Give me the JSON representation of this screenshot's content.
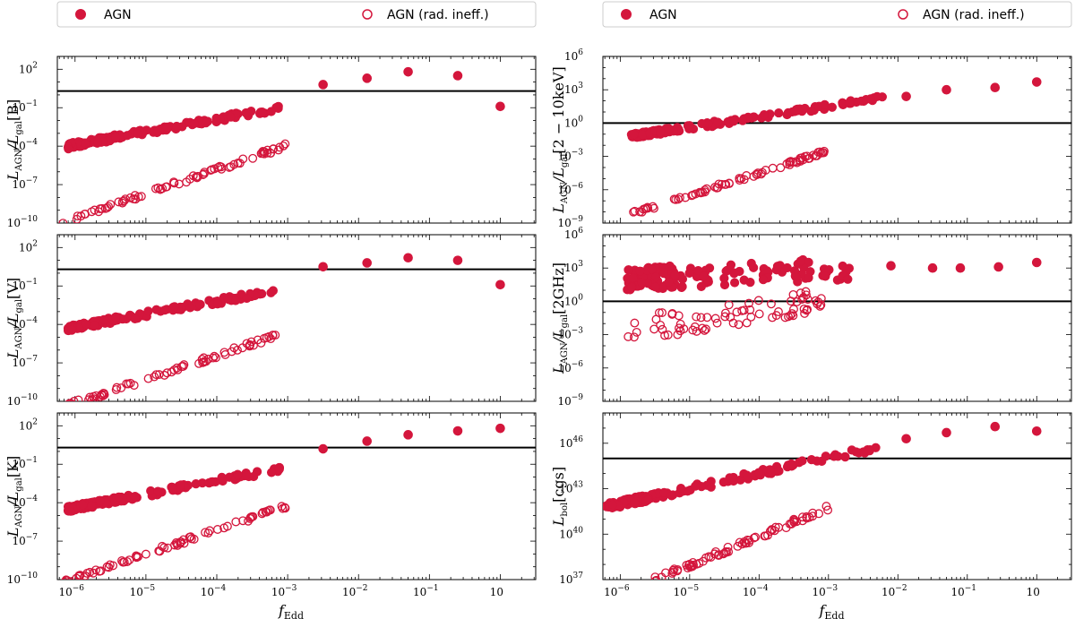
{
  "colors": {
    "accent": "#d4163c",
    "axis": "#000000",
    "legend_border": "#cccccc"
  },
  "legend": {
    "left": {
      "filled_label": "AGN",
      "open_label": "AGN (rad. ineff.)"
    },
    "right": {
      "filled_label": "AGN",
      "open_label": "AGN (rad. ineff.)"
    }
  },
  "x_axis": {
    "label_main": "f",
    "label_sub": "Edd",
    "tick_labels": [
      "10",
      "10",
      "10",
      "10",
      "10",
      "10",
      "10"
    ],
    "tick_exponents": [
      "−6",
      "−5",
      "−4",
      "−3",
      "−2",
      "−1",
      ""
    ],
    "tick_zero_label": "10"
  },
  "chart_data": [
    {
      "type": "scatter",
      "panel": "B",
      "ylabel_main": "L",
      "ylabel_sub1": "AGN",
      "ylabel_mid": "/L",
      "ylabel_sub2": "gal",
      "ylabel_tail": "[B]",
      "xscale": "log",
      "yscale": "log",
      "xlim_exp": [
        -6.25,
        0.5
      ],
      "ylim_exp": [
        -10,
        3
      ],
      "yticks_exp": [
        -10,
        -7,
        -4,
        -1,
        2
      ],
      "ytick_labels": [
        "10",
        "10",
        "10",
        "10",
        "10"
      ],
      "ytick_exps": [
        "−10",
        "−7",
        "−4",
        "−1",
        "2"
      ],
      "hline_exp": 0.3,
      "series": [
        {
          "name": "AGN",
          "marker": "filled",
          "x_range": [
            -6.1,
            -3.1
          ],
          "x_points": [
            -2.5,
            -1.88,
            -1.3,
            -0.6,
            0.0
          ],
          "y_points": [
            0.8,
            1.3,
            1.8,
            1.5,
            -0.9
          ],
          "trend": {
            "x0": -6.1,
            "y0": -4.0,
            "slope": 1.0
          }
        },
        {
          "name": "AGN (rad. ineff.)",
          "marker": "open",
          "x_range": [
            -6.2,
            -3.0
          ],
          "trend": {
            "x0": -6.2,
            "y0": -10.0,
            "slope": 1.9
          }
        }
      ]
    },
    {
      "type": "scatter",
      "panel": "V",
      "ylabel_main": "L",
      "ylabel_sub1": "AGN",
      "ylabel_mid": "/L",
      "ylabel_sub2": "gal",
      "ylabel_tail": "[V]",
      "xscale": "log",
      "yscale": "log",
      "xlim_exp": [
        -6.25,
        0.5
      ],
      "ylim_exp": [
        -10,
        3
      ],
      "yticks_exp": [
        -10,
        -7,
        -4,
        -1,
        2
      ],
      "ytick_labels": [
        "10",
        "10",
        "10",
        "10",
        "10"
      ],
      "ytick_exps": [
        "−10",
        "−7",
        "−4",
        "−1",
        "2"
      ],
      "hline_exp": 0.3,
      "series": [
        {
          "name": "AGN",
          "marker": "filled",
          "x_range": [
            -6.1,
            -3.1
          ],
          "x_points": [
            -2.5,
            -1.88,
            -1.3,
            -0.6,
            0.0
          ],
          "y_points": [
            0.5,
            0.8,
            1.2,
            1.0,
            -0.9
          ],
          "trend": {
            "x0": -6.1,
            "y0": -4.3,
            "slope": 1.0
          }
        },
        {
          "name": "AGN (rad. ineff.)",
          "marker": "open",
          "x_range": [
            -6.2,
            -3.0
          ],
          "trend": {
            "x0": -6.2,
            "y0": -10.5,
            "slope": 1.85
          }
        }
      ]
    },
    {
      "type": "scatter",
      "panel": "K",
      "ylabel_main": "L",
      "ylabel_sub1": "AGN",
      "ylabel_mid": "/L",
      "ylabel_sub2": "gal",
      "ylabel_tail": "[K]",
      "xscale": "log",
      "yscale": "log",
      "xlim_exp": [
        -6.25,
        0.5
      ],
      "ylim_exp": [
        -10,
        3
      ],
      "yticks_exp": [
        -10,
        -7,
        -4,
        -1,
        2
      ],
      "ytick_labels": [
        "10",
        "10",
        "10",
        "10",
        "10"
      ],
      "ytick_exps": [
        "−10",
        "−7",
        "−4",
        "−1",
        "2"
      ],
      "hline_exp": 0.3,
      "series": [
        {
          "name": "AGN",
          "marker": "filled",
          "x_range": [
            -6.1,
            -3.1
          ],
          "x_points": [
            -2.5,
            -1.88,
            -1.3,
            -0.6,
            0.0
          ],
          "y_points": [
            0.2,
            0.8,
            1.3,
            1.6,
            1.8
          ],
          "trend": {
            "x0": -6.1,
            "y0": -4.5,
            "slope": 1.05
          }
        },
        {
          "name": "AGN (rad. ineff.)",
          "marker": "open",
          "x_range": [
            -6.2,
            -3.0
          ],
          "trend": {
            "x0": -6.2,
            "y0": -10.3,
            "slope": 1.9
          }
        }
      ]
    },
    {
      "type": "scatter",
      "panel": "X",
      "ylabel_main": "L",
      "ylabel_sub1": "AGN",
      "ylabel_mid": "/L",
      "ylabel_sub2": "gal",
      "ylabel_tail": "[2 − 10keV]",
      "xscale": "log",
      "yscale": "log",
      "xlim_exp": [
        -6.25,
        0.5
      ],
      "ylim_exp": [
        -9,
        6
      ],
      "yticks_exp": [
        -9,
        -6,
        -3,
        0,
        3,
        6
      ],
      "ytick_labels": [
        "10",
        "10",
        "10",
        "10",
        "10",
        "10"
      ],
      "ytick_exps": [
        "−9",
        "−6",
        "−3",
        "0",
        "3",
        "6"
      ],
      "hline_exp": 0.0,
      "series": [
        {
          "name": "AGN",
          "marker": "filled",
          "x_range": [
            -5.85,
            -2.2
          ],
          "x_points": [
            -1.88,
            -1.3,
            -0.6,
            0.0
          ],
          "y_points": [
            2.4,
            3.0,
            3.2,
            3.7
          ],
          "trend": {
            "x0": -5.85,
            "y0": -1.2,
            "slope": 0.95
          }
        },
        {
          "name": "AGN (rad. ineff.)",
          "marker": "open",
          "x_range": [
            -5.9,
            -3.0
          ],
          "trend": {
            "x0": -5.9,
            "y0": -8.3,
            "slope": 2.0
          }
        }
      ]
    },
    {
      "type": "scatter",
      "panel": "Radio",
      "ylabel_main": "L",
      "ylabel_sub1": "AGN",
      "ylabel_mid": "/L",
      "ylabel_sub2": "gal",
      "ylabel_tail": "[2GHz]",
      "xscale": "log",
      "yscale": "log",
      "xlim_exp": [
        -6.25,
        0.5
      ],
      "ylim_exp": [
        -9,
        6
      ],
      "yticks_exp": [
        -9,
        -6,
        -3,
        0,
        3,
        6
      ],
      "ytick_labels": [
        "10",
        "10",
        "10",
        "10",
        "10",
        "10"
      ],
      "ytick_exps": [
        "−9",
        "−6",
        "−3",
        "0",
        "3",
        "6"
      ],
      "hline_exp": 0.0,
      "series": [
        {
          "name": "AGN",
          "marker": "filled",
          "x_range": [
            -5.9,
            -2.5
          ],
          "x_points": [
            -2.1,
            -1.5,
            -1.1,
            -0.55,
            0.0
          ],
          "y_points": [
            3.2,
            3.0,
            3.0,
            3.1,
            3.5
          ],
          "trend": {
            "x0": -5.9,
            "y0": 2.0,
            "slope": 0.3
          }
        },
        {
          "name": "AGN (rad. ineff.)",
          "marker": "open",
          "x_range": [
            -5.9,
            -3.0
          ],
          "trend": {
            "x0": -5.9,
            "y0": -2.5,
            "slope": 0.85
          }
        }
      ]
    },
    {
      "type": "scatter",
      "panel": "Bol",
      "ylabel_main": "L",
      "ylabel_sub1": "bol",
      "ylabel_mid": "",
      "ylabel_sub2": "",
      "ylabel_tail": "[cgs]",
      "xscale": "log",
      "yscale": "log",
      "xlim_exp": [
        -6.25,
        0.5
      ],
      "ylim_exp": [
        37,
        48
      ],
      "yticks_exp": [
        37,
        40,
        43,
        46
      ],
      "ytick_labels": [
        "10",
        "10",
        "10",
        "10"
      ],
      "ytick_exps": [
        "37",
        "40",
        "43",
        "46"
      ],
      "hline_exp": 45,
      "series": [
        {
          "name": "AGN",
          "marker": "filled",
          "x_range": [
            -6.2,
            -2.3
          ],
          "x_points": [
            -1.88,
            -1.3,
            -0.6,
            0.0
          ],
          "y_points": [
            46.3,
            46.7,
            47.1,
            46.8
          ],
          "trend": {
            "x0": -6.2,
            "y0": 41.8,
            "slope": 1.0
          }
        },
        {
          "name": "AGN (rad. ineff.)",
          "marker": "open",
          "x_range": [
            -5.5,
            -3.0
          ],
          "trend": {
            "x0": -5.5,
            "y0": 37.0,
            "slope": 1.9
          }
        }
      ]
    }
  ]
}
